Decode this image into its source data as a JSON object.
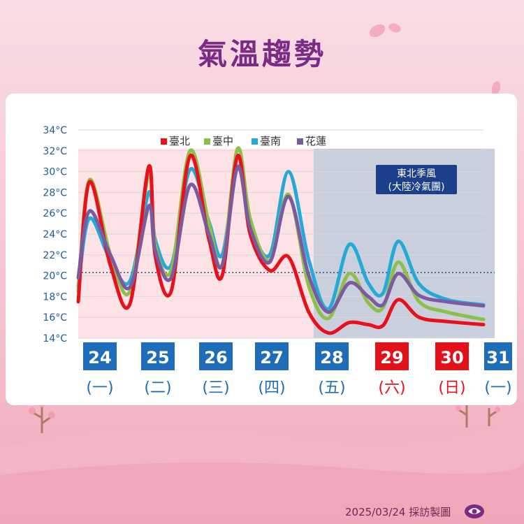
{
  "title": "氣溫趨勢",
  "footer": "2025/03/24 採訪製圖",
  "colors": {
    "title": "#7b2a86",
    "warm_region": "#fde3e5",
    "cool_region": "#c9cfdd",
    "weekday_box": "#1f6cb8",
    "weekend_box": "#e3111a",
    "reference_line": "#2a4d7a",
    "monsoon_box": "#1c3f8a"
  },
  "monsoon_label": [
    "東北季風",
    "(大陸冷氣團)"
  ],
  "chart_data": {
    "type": "line",
    "ylim": [
      14,
      34
    ],
    "y_ticks": [
      "14°C",
      "16°C",
      "18°C",
      "20°C",
      "22°C",
      "24°C",
      "26°C",
      "28°C",
      "30°C",
      "32°C",
      "34°C"
    ],
    "x": [
      24.0,
      24.25,
      24.5,
      24.75,
      25.0,
      25.25,
      25.5,
      25.75,
      26.0,
      26.25,
      26.5,
      26.75,
      27.0,
      27.25,
      27.5,
      27.75,
      28.0,
      28.25,
      28.5,
      28.75,
      29.0,
      29.25,
      29.5,
      29.75,
      30.0,
      30.25,
      30.5,
      30.75,
      31.0
    ],
    "series": [
      {
        "name": "臺北",
        "color": "#e8101b",
        "values": [
          17.5,
          29.0,
          21.0,
          17.3,
          30.5,
          22.0,
          18.5,
          31.5,
          23.5,
          20.0,
          31.5,
          24.0,
          20.5,
          21.8,
          16.5,
          14.5,
          15.5,
          15.3,
          15.2,
          17.7,
          16.0,
          15.6,
          15.3,
          null,
          null,
          null,
          null,
          null,
          null
        ]
      },
      {
        "name": "臺中",
        "color": "#8cc04a",
        "values": [
          18.5,
          29.2,
          22.0,
          18.5,
          29.8,
          23.0,
          20.5,
          32.0,
          25.0,
          21.0,
          32.2,
          25.5,
          21.5,
          27.8,
          19.0,
          15.9,
          20.2,
          17.4,
          16.9,
          21.3,
          17.5,
          16.5,
          15.8,
          null,
          null,
          null,
          null,
          null,
          null
        ]
      },
      {
        "name": "臺南",
        "color": "#25a9d6",
        "values": [
          19.0,
          25.5,
          21.5,
          19.5,
          28.0,
          23.5,
          21.0,
          30.2,
          25.2,
          22.0,
          30.5,
          25.0,
          22.0,
          30.0,
          21.5,
          16.8,
          23.0,
          19.3,
          18.3,
          23.3,
          19.2,
          17.7,
          17.2,
          null,
          null,
          null,
          null,
          null,
          null
        ]
      },
      {
        "name": "花蓮",
        "color": "#7b5aa0",
        "values": [
          19.8,
          26.2,
          22.0,
          18.9,
          26.7,
          22.5,
          19.8,
          28.7,
          24.0,
          21.0,
          30.4,
          24.6,
          21.3,
          27.6,
          20.0,
          16.5,
          19.3,
          18.0,
          17.2,
          20.2,
          18.1,
          17.5,
          17.1,
          null,
          null,
          null,
          null,
          null,
          null
        ]
      }
    ],
    "reference_value": 20.0,
    "days": [
      {
        "num": "24",
        "weekday": "(一)",
        "weekend": false
      },
      {
        "num": "25",
        "weekday": "(二)",
        "weekend": false
      },
      {
        "num": "26",
        "weekday": "(三)",
        "weekend": false
      },
      {
        "num": "27",
        "weekday": "(四)",
        "weekend": false
      },
      {
        "num": "28",
        "weekday": "(五)",
        "weekend": false
      },
      {
        "num": "29",
        "weekday": "(六)",
        "weekend": true
      },
      {
        "num": "30",
        "weekday": "(日)",
        "weekend": true
      },
      {
        "num": "31",
        "weekday": "(一)",
        "weekend": false
      }
    ]
  }
}
